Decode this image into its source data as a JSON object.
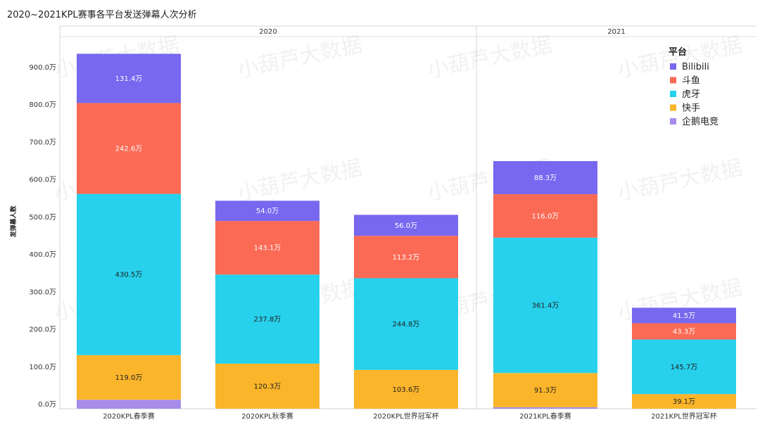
{
  "chart_data": {
    "type": "bar",
    "stacked": true,
    "title": "2020~2021KPL赛事各平台发送弹幕人次分析",
    "ylabel": "发弹幕人数",
    "xlabel": "",
    "ylim": [
      0,
      960
    ],
    "yticks": [
      {
        "value": 0,
        "label": "0.0万"
      },
      {
        "value": 100,
        "label": "100.0万"
      },
      {
        "value": 200,
        "label": "200.0万"
      },
      {
        "value": 300,
        "label": "300.0万"
      },
      {
        "value": 400,
        "label": "400.0万"
      },
      {
        "value": 500,
        "label": "500.0万"
      },
      {
        "value": 600,
        "label": "600.0万"
      },
      {
        "value": 700,
        "label": "700.0万"
      },
      {
        "value": 800,
        "label": "800.0万"
      },
      {
        "value": 900,
        "label": "900.0万"
      }
    ],
    "groups": [
      {
        "name": "2020",
        "categories": [
          "2020KPL春季赛",
          "2020KPL秋季赛",
          "2020KPL世界冠军杯"
        ]
      },
      {
        "name": "2021",
        "categories": [
          "2021KPL春季赛",
          "2021KPL世界冠军杯"
        ]
      }
    ],
    "categories": [
      "2020KPL春季赛",
      "2020KPL秋季赛",
      "2020KPL世界冠军杯",
      "2021KPL春季赛",
      "2021KPL世界冠军杯"
    ],
    "series": [
      {
        "name": "企鹅电竞",
        "color": "#a78bea",
        "values": [
          24.0,
          0,
          0,
          4.0,
          0
        ],
        "labels": [
          "",
          "",
          "",
          "",
          ""
        ]
      },
      {
        "name": "快手",
        "color": "#fbb52b",
        "values": [
          119.0,
          120.3,
          103.6,
          91.3,
          39.1
        ],
        "labels": [
          "119.0万",
          "120.3万",
          "103.6万",
          "91.3万",
          "39.1万"
        ]
      },
      {
        "name": "虎牙",
        "color": "#27d1ec",
        "values": [
          430.5,
          237.8,
          244.8,
          361.4,
          145.7
        ],
        "labels": [
          "430.5万",
          "237.8万",
          "244.8万",
          "361.4万",
          "145.7万"
        ]
      },
      {
        "name": "斗鱼",
        "color": "#fb6a55",
        "values": [
          242.6,
          143.1,
          113.2,
          116.0,
          43.3
        ],
        "labels": [
          "242.6万",
          "143.1万",
          "113.2万",
          "116.0万",
          "43.3万"
        ]
      },
      {
        "name": "Bilibili",
        "color": "#7768ef",
        "values": [
          131.4,
          54.0,
          56.0,
          88.3,
          41.5
        ],
        "labels": [
          "131.4万",
          "54.0万",
          "56.0万",
          "88.3万",
          "41.5万"
        ]
      }
    ],
    "legend": {
      "title": "平台",
      "position": "top-right",
      "items": [
        "Bilibili",
        "斗鱼",
        "虎牙",
        "快手",
        "企鹅电竞"
      ]
    },
    "watermark": "小葫芦大数据"
  }
}
